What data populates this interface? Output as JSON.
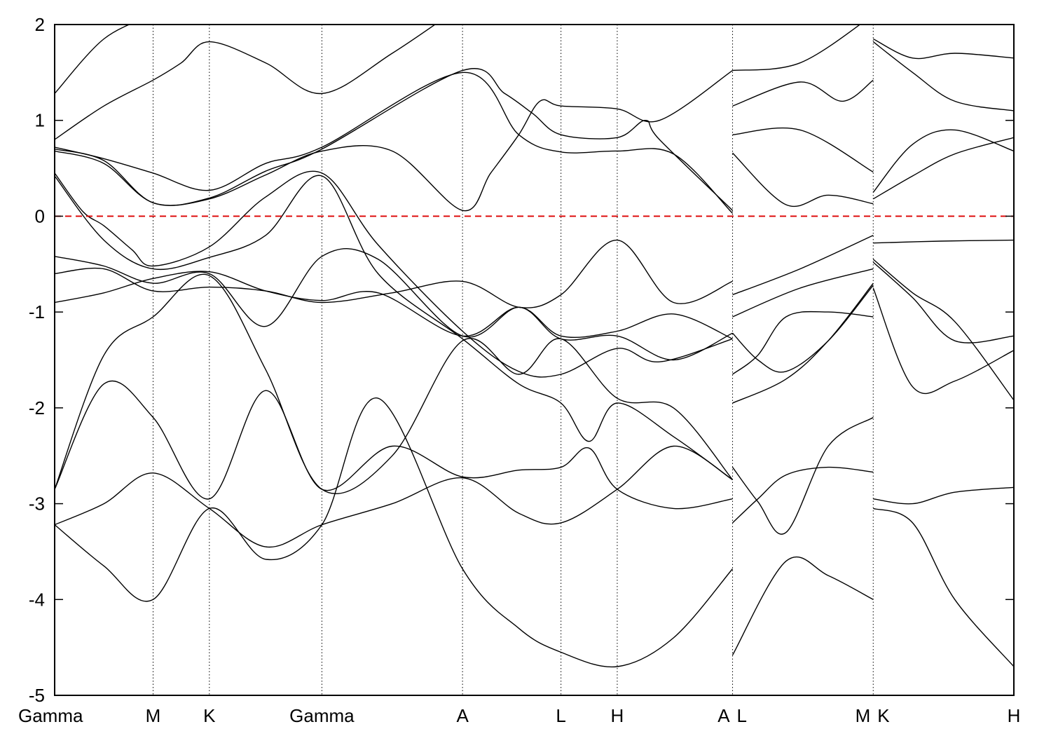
{
  "chart_data": {
    "type": "line",
    "title": "",
    "xlabel": "",
    "ylabel": "",
    "ylim": [
      -5,
      2
    ],
    "y_ticks": [
      "2",
      "1",
      "0",
      "-1",
      "-2",
      "-3",
      "-4",
      "-5"
    ],
    "y_tick_values": [
      2,
      1,
      0,
      -1,
      -2,
      -3,
      -4,
      -5
    ],
    "k_points": [
      {
        "label": "Gamma",
        "x": 0.0
      },
      {
        "label": "M",
        "x": 0.7
      },
      {
        "label": "K",
        "x": 1.1
      },
      {
        "label": "Gamma",
        "x": 1.9
      },
      {
        "label": "A",
        "x": 2.9
      },
      {
        "label": "L",
        "x": 3.6
      },
      {
        "label": "H",
        "x": 4.0
      },
      {
        "label": "A",
        "x": 4.82
      },
      {
        "label": "L",
        "x": 4.82
      },
      {
        "label": "M",
        "x": 5.82
      },
      {
        "label": "K",
        "x": 5.82
      },
      {
        "label": "H",
        "x": 6.82
      }
    ],
    "segment_breaks": [
      4.82,
      5.82
    ],
    "fermi_level": {
      "y": 0,
      "color": "#dd0000"
    },
    "colors": {
      "bands": "#000000",
      "fermi": "#dd0000",
      "kpoint_lines": "#000000"
    },
    "grid": false,
    "legend": "none",
    "series": [
      {
        "values": [
          [
            0,
            1.28
          ],
          [
            0.35,
            1.85
          ],
          [
            0.7,
            2.1
          ]
        ]
      },
      {
        "values": [
          [
            0,
            0.8
          ],
          [
            0.35,
            1.15
          ],
          [
            0.7,
            1.42
          ],
          [
            0.9,
            1.6
          ],
          [
            1.1,
            1.82
          ],
          [
            1.5,
            1.6
          ],
          [
            1.9,
            1.28
          ],
          [
            2.4,
            1.7
          ],
          [
            2.9,
            2.2
          ]
        ]
      },
      {
        "values": [
          [
            0,
            0.72
          ],
          [
            0.35,
            0.6
          ],
          [
            0.7,
            0.45
          ],
          [
            1.1,
            0.27
          ],
          [
            1.5,
            0.55
          ],
          [
            1.9,
            0.72
          ],
          [
            2.9,
            1.5
          ],
          [
            3.3,
            0.85
          ],
          [
            3.6,
            0.67
          ],
          [
            4.0,
            0.68
          ],
          [
            4.4,
            0.65
          ],
          [
            4.82,
            0.03
          ]
        ]
      },
      {
        "values": [
          [
            0,
            0.7
          ],
          [
            0.35,
            0.58
          ],
          [
            0.7,
            0.14
          ],
          [
            1.1,
            0.19
          ],
          [
            1.5,
            0.47
          ],
          [
            1.9,
            0.7
          ],
          [
            2.9,
            1.52
          ],
          [
            3.2,
            1.28
          ],
          [
            3.4,
            1.07
          ],
          [
            3.6,
            0.85
          ],
          [
            4.0,
            0.82
          ],
          [
            4.2,
            1.0
          ],
          [
            4.3,
            0.8
          ],
          [
            4.82,
            0.06
          ]
        ]
      },
      {
        "values": [
          [
            0,
            0.68
          ],
          [
            0.35,
            0.55
          ],
          [
            0.7,
            0.14
          ],
          [
            1.1,
            0.18
          ],
          [
            1.5,
            0.43
          ],
          [
            1.9,
            0.68
          ],
          [
            2.4,
            0.68
          ],
          [
            2.9,
            0.06
          ],
          [
            3.1,
            0.45
          ],
          [
            3.3,
            0.85
          ],
          [
            3.45,
            1.2
          ],
          [
            3.6,
            1.15
          ],
          [
            4.0,
            1.12
          ],
          [
            4.3,
            1.0
          ],
          [
            4.82,
            1.52
          ]
        ]
      },
      {
        "values": [
          [
            0,
            0.45
          ],
          [
            0.2,
            0.05
          ],
          [
            0.35,
            -0.1
          ],
          [
            0.55,
            -0.35
          ],
          [
            0.7,
            -0.52
          ],
          [
            1.1,
            -0.32
          ],
          [
            1.5,
            0.2
          ],
          [
            1.9,
            0.45
          ],
          [
            2.3,
            -0.3
          ],
          [
            2.9,
            -1.2
          ],
          [
            3.3,
            -1.62
          ],
          [
            3.6,
            -1.65
          ],
          [
            4.0,
            -1.38
          ],
          [
            4.3,
            -1.52
          ],
          [
            4.82,
            -1.28
          ]
        ]
      },
      {
        "values": [
          [
            0,
            0.42
          ],
          [
            0.35,
            -0.25
          ],
          [
            0.7,
            -0.55
          ],
          [
            1.1,
            -0.43
          ],
          [
            1.5,
            -0.2
          ],
          [
            1.9,
            0.42
          ],
          [
            2.3,
            -0.6
          ],
          [
            2.9,
            -1.28
          ],
          [
            3.3,
            -1.75
          ],
          [
            3.6,
            -1.95
          ],
          [
            3.8,
            -2.35
          ],
          [
            4.0,
            -1.95
          ],
          [
            4.4,
            -2.3
          ],
          [
            4.82,
            -2.75
          ]
        ]
      },
      {
        "values": [
          [
            0,
            -0.42
          ],
          [
            0.35,
            -0.52
          ],
          [
            0.7,
            -0.7
          ],
          [
            1.1,
            -0.6
          ],
          [
            1.5,
            -1.15
          ],
          [
            1.9,
            -0.42
          ],
          [
            2.3,
            -0.45
          ],
          [
            2.9,
            -1.25
          ],
          [
            3.3,
            -0.95
          ],
          [
            3.6,
            -1.25
          ],
          [
            4.0,
            -1.2
          ],
          [
            4.4,
            -1.02
          ],
          [
            4.82,
            -1.28
          ]
        ]
      },
      {
        "values": [
          [
            0,
            -0.6
          ],
          [
            0.35,
            -0.55
          ],
          [
            0.7,
            -0.78
          ],
          [
            1.1,
            -0.74
          ],
          [
            1.5,
            -0.78
          ],
          [
            1.9,
            -0.9
          ],
          [
            2.4,
            -0.8
          ],
          [
            2.9,
            -0.68
          ],
          [
            3.3,
            -0.95
          ],
          [
            3.6,
            -0.82
          ],
          [
            4.0,
            -0.25
          ],
          [
            4.4,
            -0.9
          ],
          [
            4.82,
            -0.68
          ]
        ]
      },
      {
        "values": [
          [
            0,
            -0.9
          ],
          [
            0.35,
            -0.8
          ],
          [
            0.7,
            -0.65
          ],
          [
            1.1,
            -0.58
          ],
          [
            1.5,
            -0.78
          ],
          [
            1.9,
            -0.88
          ],
          [
            2.3,
            -0.8
          ],
          [
            2.9,
            -1.25
          ],
          [
            3.3,
            -0.95
          ],
          [
            3.6,
            -1.28
          ],
          [
            4.0,
            -1.25
          ],
          [
            4.4,
            -1.5
          ],
          [
            4.82,
            -1.22
          ]
        ]
      },
      {
        "values": [
          [
            0,
            -2.85
          ],
          [
            0.35,
            -1.45
          ],
          [
            0.7,
            -1.05
          ],
          [
            1.1,
            -0.62
          ],
          [
            1.5,
            -1.6
          ],
          [
            1.9,
            -2.85
          ],
          [
            2.4,
            -2.5
          ],
          [
            2.9,
            -1.3
          ],
          [
            3.3,
            -1.65
          ],
          [
            3.6,
            -1.28
          ],
          [
            4.0,
            -1.9
          ],
          [
            4.4,
            -2.0
          ],
          [
            4.82,
            -2.75
          ]
        ]
      },
      {
        "values": [
          [
            0,
            -2.85
          ],
          [
            0.35,
            -1.75
          ],
          [
            0.7,
            -2.1
          ],
          [
            1.1,
            -2.95
          ],
          [
            1.5,
            -1.82
          ],
          [
            1.9,
            -2.85
          ],
          [
            2.4,
            -2.4
          ],
          [
            2.9,
            -2.72
          ],
          [
            3.3,
            -2.65
          ],
          [
            3.6,
            -2.62
          ],
          [
            3.8,
            -2.42
          ],
          [
            4.0,
            -2.85
          ],
          [
            4.4,
            -3.05
          ],
          [
            4.82,
            -2.95
          ]
        ]
      },
      {
        "values": [
          [
            0,
            -3.22
          ],
          [
            0.35,
            -3.0
          ],
          [
            0.7,
            -2.68
          ],
          [
            1.1,
            -3.05
          ],
          [
            1.5,
            -3.45
          ],
          [
            1.9,
            -3.22
          ],
          [
            2.4,
            -3.0
          ],
          [
            2.9,
            -2.73
          ],
          [
            3.3,
            -3.1
          ],
          [
            3.6,
            -3.2
          ],
          [
            4.0,
            -2.85
          ],
          [
            4.4,
            -2.4
          ],
          [
            4.82,
            -2.75
          ]
        ]
      },
      {
        "values": [
          [
            0,
            -3.22
          ],
          [
            0.35,
            -3.65
          ],
          [
            0.7,
            -4.0
          ],
          [
            1.1,
            -3.05
          ],
          [
            1.5,
            -3.58
          ],
          [
            1.9,
            -3.22
          ],
          [
            2.3,
            -1.9
          ],
          [
            2.9,
            -3.68
          ],
          [
            3.3,
            -4.3
          ],
          [
            3.6,
            -4.55
          ],
          [
            4.0,
            -4.7
          ],
          [
            4.4,
            -4.4
          ],
          [
            4.82,
            -3.68
          ]
        ]
      },
      {
        "values": [
          [
            4.82,
            1.52
          ],
          [
            5.3,
            1.6
          ],
          [
            5.82,
            2.1
          ]
        ]
      },
      {
        "values": [
          [
            4.82,
            1.15
          ],
          [
            5.3,
            1.4
          ],
          [
            5.6,
            1.2
          ],
          [
            5.82,
            1.42
          ]
        ]
      },
      {
        "values": [
          [
            4.82,
            0.85
          ],
          [
            5.3,
            0.9
          ],
          [
            5.82,
            0.46
          ]
        ]
      },
      {
        "values": [
          [
            4.82,
            0.66
          ],
          [
            5.2,
            0.12
          ],
          [
            5.5,
            0.22
          ],
          [
            5.82,
            0.13
          ]
        ]
      },
      {
        "values": [
          [
            4.82,
            -0.82
          ],
          [
            5.3,
            -0.55
          ],
          [
            5.82,
            -0.2
          ]
        ]
      },
      {
        "values": [
          [
            4.82,
            -1.05
          ],
          [
            5.3,
            -0.75
          ],
          [
            5.82,
            -0.55
          ]
        ]
      },
      {
        "values": [
          [
            4.82,
            -1.22
          ],
          [
            5.0,
            -1.5
          ],
          [
            5.2,
            -1.62
          ],
          [
            5.5,
            -1.3
          ],
          [
            5.82,
            -0.72
          ]
        ]
      },
      {
        "values": [
          [
            4.82,
            -1.65
          ],
          [
            5.0,
            -1.45
          ],
          [
            5.2,
            -1.05
          ],
          [
            5.5,
            -1.0
          ],
          [
            5.82,
            -1.05
          ]
        ]
      },
      {
        "values": [
          [
            4.82,
            -1.95
          ],
          [
            5.2,
            -1.7
          ],
          [
            5.5,
            -1.3
          ],
          [
            5.82,
            -0.7
          ]
        ]
      },
      {
        "values": [
          [
            4.82,
            -2.62
          ],
          [
            5.0,
            -2.98
          ],
          [
            5.2,
            -3.3
          ],
          [
            5.5,
            -2.4
          ],
          [
            5.82,
            -2.1
          ]
        ]
      },
      {
        "values": [
          [
            4.82,
            -3.2
          ],
          [
            5.0,
            -2.95
          ],
          [
            5.2,
            -2.7
          ],
          [
            5.5,
            -2.62
          ],
          [
            5.82,
            -2.67
          ]
        ]
      },
      {
        "values": [
          [
            4.82,
            -4.58
          ],
          [
            5.2,
            -3.6
          ],
          [
            5.5,
            -3.75
          ],
          [
            5.82,
            -4.0
          ]
        ]
      },
      {
        "values": [
          [
            5.82,
            1.85
          ],
          [
            6.1,
            1.65
          ],
          [
            6.4,
            1.7
          ],
          [
            6.82,
            1.65
          ]
        ]
      },
      {
        "values": [
          [
            5.82,
            1.82
          ],
          [
            6.1,
            1.5
          ],
          [
            6.4,
            1.2
          ],
          [
            6.82,
            1.1
          ]
        ]
      },
      {
        "values": [
          [
            5.82,
            0.25
          ],
          [
            6.1,
            0.75
          ],
          [
            6.4,
            0.9
          ],
          [
            6.82,
            0.68
          ]
        ]
      },
      {
        "values": [
          [
            5.82,
            0.18
          ],
          [
            6.1,
            0.42
          ],
          [
            6.4,
            0.65
          ],
          [
            6.82,
            0.82
          ]
        ]
      },
      {
        "values": [
          [
            5.82,
            -0.28
          ],
          [
            6.3,
            -0.26
          ],
          [
            6.82,
            -0.25
          ]
        ]
      },
      {
        "values": [
          [
            5.82,
            -0.45
          ],
          [
            6.1,
            -0.8
          ],
          [
            6.4,
            -1.1
          ],
          [
            6.82,
            -1.92
          ]
        ]
      },
      {
        "values": [
          [
            5.82,
            -0.48
          ],
          [
            6.1,
            -0.85
          ],
          [
            6.4,
            -1.3
          ],
          [
            6.82,
            -1.25
          ]
        ]
      },
      {
        "values": [
          [
            5.82,
            -0.75
          ],
          [
            6.1,
            -1.78
          ],
          [
            6.4,
            -1.72
          ],
          [
            6.82,
            -1.4
          ]
        ]
      },
      {
        "values": [
          [
            5.82,
            -2.95
          ],
          [
            6.1,
            -3.0
          ],
          [
            6.4,
            -2.88
          ],
          [
            6.82,
            -2.83
          ]
        ]
      },
      {
        "values": [
          [
            5.82,
            -3.05
          ],
          [
            6.1,
            -3.2
          ],
          [
            6.4,
            -4.0
          ],
          [
            6.82,
            -4.7
          ]
        ]
      }
    ]
  }
}
